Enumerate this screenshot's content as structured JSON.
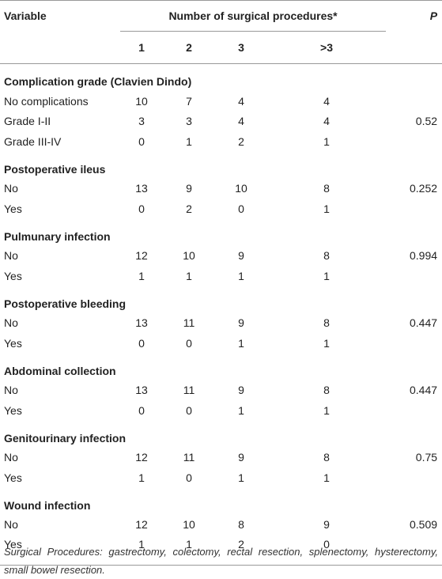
{
  "header": {
    "variable": "Variable",
    "group": "Number of surgical procedures*",
    "p": "P",
    "subcolumns": [
      1,
      2,
      3,
      ">3"
    ]
  },
  "sections": [
    {
      "title": "Complication grade (Clavien Dindo)",
      "rows": [
        {
          "label": "No complications",
          "values": [
            10,
            7,
            4,
            4
          ]
        },
        {
          "label": "Grade I-II",
          "values": [
            3,
            3,
            4,
            4
          ],
          "p": 0.52
        },
        {
          "label": "Grade III-IV",
          "values": [
            0,
            1,
            2,
            1
          ]
        }
      ]
    },
    {
      "title": "Postoperative ileus",
      "rows": [
        {
          "label": "No",
          "values": [
            13,
            9,
            10,
            8
          ],
          "p": 0.252
        },
        {
          "label": "Yes",
          "values": [
            0,
            2,
            0,
            1
          ]
        }
      ]
    },
    {
      "title": "Pulmunary infection",
      "rows": [
        {
          "label": "No",
          "values": [
            12,
            10,
            9,
            8
          ],
          "p": 0.994
        },
        {
          "label": "Yes",
          "values": [
            1,
            1,
            1,
            1
          ]
        }
      ]
    },
    {
      "title": "Postoperative bleeding",
      "rows": [
        {
          "label": "No",
          "values": [
            13,
            11,
            9,
            8
          ],
          "p": 0.447
        },
        {
          "label": "Yes",
          "values": [
            0,
            0,
            1,
            1
          ]
        }
      ]
    },
    {
      "title": "Abdominal collection",
      "rows": [
        {
          "label": "No",
          "values": [
            13,
            11,
            9,
            8
          ],
          "p": 0.447
        },
        {
          "label": "Yes",
          "values": [
            0,
            0,
            1,
            1
          ]
        }
      ]
    },
    {
      "title": "Genitourinary infection",
      "rows": [
        {
          "label": "No",
          "values": [
            12,
            11,
            9,
            8
          ],
          "p": 0.75
        },
        {
          "label": "Yes",
          "values": [
            1,
            0,
            1,
            1
          ]
        }
      ]
    },
    {
      "title": "Wound infection",
      "rows": [
        {
          "label": "No",
          "values": [
            12,
            10,
            8,
            9
          ],
          "p": 0.509
        },
        {
          "label": "Yes",
          "values": [
            1,
            1,
            2,
            0
          ]
        }
      ]
    }
  ],
  "footnote": "Surgical Procedures: gastrectomy, colectomy, rectal resection, splenectomy, hysterectomy, small bowel resection."
}
